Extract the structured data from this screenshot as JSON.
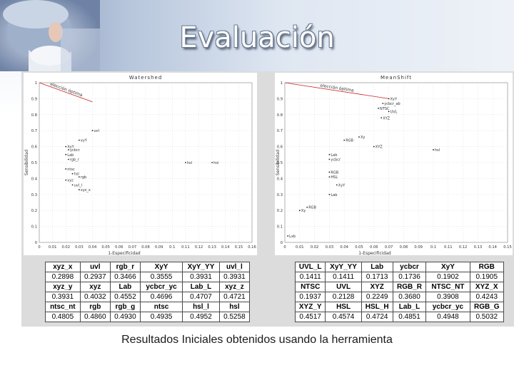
{
  "slide": {
    "title": "Evaluación",
    "caption": "Resultados Iniciales obtenidos usando la herramienta"
  },
  "chart_data": [
    {
      "type": "scatter",
      "title": "Watershed",
      "xlabel": "1-Especificidad",
      "ylabel": "Sensibilidad",
      "xlim": [
        0,
        0.16
      ],
      "ylim": [
        0,
        1
      ],
      "xticks": [
        "0",
        "0.01",
        "0.02",
        "0.03",
        "0.04",
        "0.05",
        "0.06",
        "0.07",
        "0.08",
        "0.09",
        "0.1",
        "0.11",
        "0.12",
        "0.13",
        "0.14",
        "0.15",
        "0.16"
      ],
      "yticks": [
        "0",
        "0.1",
        "0.2",
        "0.3",
        "0.4",
        "0.5",
        "0.6",
        "0.7",
        "0.8",
        "0.9",
        "1"
      ],
      "grid": true,
      "annotation": {
        "text": "elección óptima",
        "from": [
          0.0,
          1.0
        ],
        "to": [
          0.04,
          0.88
        ]
      },
      "points": [
        {
          "x": 0.04,
          "y": 0.7,
          "label": "uvl"
        },
        {
          "x": 0.03,
          "y": 0.64,
          "label": "xyY"
        },
        {
          "x": 0.02,
          "y": 0.6,
          "label": "XyY"
        },
        {
          "x": 0.022,
          "y": 0.58,
          "label": "ycbcr"
        },
        {
          "x": 0.02,
          "y": 0.55,
          "label": "Lab"
        },
        {
          "x": 0.022,
          "y": 0.52,
          "label": "rgb_r"
        },
        {
          "x": 0.02,
          "y": 0.46,
          "label": "ntsc"
        },
        {
          "x": 0.025,
          "y": 0.43,
          "label": "hsl"
        },
        {
          "x": 0.03,
          "y": 0.41,
          "label": "rgb"
        },
        {
          "x": 0.02,
          "y": 0.39,
          "label": "xyz"
        },
        {
          "x": 0.025,
          "y": 0.36,
          "label": "uvl_l"
        },
        {
          "x": 0.03,
          "y": 0.33,
          "label": "xyz_x"
        },
        {
          "x": 0.11,
          "y": 0.5,
          "label": "hsl"
        },
        {
          "x": 0.13,
          "y": 0.5,
          "label": "hsl"
        }
      ]
    },
    {
      "type": "scatter",
      "title": "MeanShift",
      "xlabel": "1-Especificidad",
      "ylabel": "Sensibilidad",
      "xlim": [
        0,
        0.15
      ],
      "ylim": [
        0,
        1
      ],
      "xticks": [
        "0",
        "0.01",
        "0.02",
        "0.03",
        "0.04",
        "0.05",
        "0.06",
        "0.07",
        "0.08",
        "0.09",
        "0.1",
        "0.11",
        "0.12",
        "0.13",
        "0.14",
        "0.15"
      ],
      "yticks": [
        "0",
        "0.1",
        "0.2",
        "0.3",
        "0.4",
        "0.5",
        "0.6",
        "0.7",
        "0.8",
        "0.9",
        "1"
      ],
      "grid": true,
      "annotation": {
        "text": "elección óptima",
        "from": [
          0.0,
          1.0
        ],
        "to": [
          0.07,
          0.9
        ]
      },
      "points": [
        {
          "x": 0.07,
          "y": 0.9,
          "label": "XyY"
        },
        {
          "x": 0.066,
          "y": 0.87,
          "label": "ycbcr_ab"
        },
        {
          "x": 0.063,
          "y": 0.84,
          "label": "NTSC"
        },
        {
          "x": 0.07,
          "y": 0.82,
          "label": "UVL"
        },
        {
          "x": 0.065,
          "y": 0.78,
          "label": "XYZ"
        },
        {
          "x": 0.05,
          "y": 0.66,
          "label": "Xy"
        },
        {
          "x": 0.04,
          "y": 0.64,
          "label": "RGB"
        },
        {
          "x": 0.06,
          "y": 0.6,
          "label": "XYZ"
        },
        {
          "x": 0.03,
          "y": 0.55,
          "label": "Lab"
        },
        {
          "x": 0.03,
          "y": 0.52,
          "label": "ycbcr"
        },
        {
          "x": 0.1,
          "y": 0.58,
          "label": "hsl"
        },
        {
          "x": 0.03,
          "y": 0.44,
          "label": "RGB"
        },
        {
          "x": 0.03,
          "y": 0.41,
          "label": "HSL"
        },
        {
          "x": 0.035,
          "y": 0.36,
          "label": "XyY"
        },
        {
          "x": 0.03,
          "y": 0.3,
          "label": "Lab"
        },
        {
          "x": 0.015,
          "y": 0.22,
          "label": "RGB"
        },
        {
          "x": 0.01,
          "y": 0.2,
          "label": "Xy"
        },
        {
          "x": 0.002,
          "y": 0.04,
          "label": "Lxb"
        }
      ]
    }
  ],
  "tables": [
    {
      "rows": [
        {
          "type": "hdr",
          "cells": [
            "xyz_x",
            "uvl",
            "rgb_r",
            "XyY",
            "XyY_YY",
            "uvl_l"
          ]
        },
        {
          "type": "val",
          "cells": [
            "0.2898",
            "0.2937",
            "0.3466",
            "0.3555",
            "0.3931",
            "0.3931"
          ]
        },
        {
          "type": "hdr",
          "cells": [
            "xyz_y",
            "xyz",
            "Lab",
            "ycbcr_yc",
            "Lab_L",
            "xyz_z"
          ]
        },
        {
          "type": "val",
          "cells": [
            "0.3931",
            "0.4032",
            "0.4552",
            "0.4696",
            "0.4707",
            "0.4721"
          ]
        },
        {
          "type": "hdr",
          "cells": [
            "ntsc_nt",
            "rgb",
            "rgb_g",
            "ntsc",
            "hsl_l",
            "hsl"
          ]
        },
        {
          "type": "val",
          "cells": [
            "0.4805",
            "0.4860",
            "0.4930",
            "0.4935",
            "0.4952",
            "0.5258"
          ]
        }
      ]
    },
    {
      "rows": [
        {
          "type": "hdr",
          "cells": [
            "UVL_L",
            "XyY_YY",
            "Lab",
            "ycbcr",
            "XyY",
            "RGB"
          ]
        },
        {
          "type": "val",
          "cells": [
            "0.1411",
            "0.1411",
            "0.1713",
            "0.1736",
            "0.1902",
            "0.1905"
          ]
        },
        {
          "type": "hdr",
          "cells": [
            "NTSC",
            "UVL",
            "XYZ",
            "RGB_R",
            "NTSC_NT",
            "XYZ_X"
          ]
        },
        {
          "type": "val",
          "cells": [
            "0.1937",
            "0.2128",
            "0.2249",
            "0.3680",
            "0.3908",
            "0.4243"
          ]
        },
        {
          "type": "hdr",
          "cells": [
            "XYZ_Y",
            "HSL",
            "HSL_H",
            "Lab_L",
            "ycbcr_yc",
            "RGB_G"
          ]
        },
        {
          "type": "val",
          "cells": [
            "0.4517",
            "0.4574",
            "0.4724",
            "0.4851",
            "0.4948",
            "0.5032"
          ]
        }
      ]
    }
  ]
}
